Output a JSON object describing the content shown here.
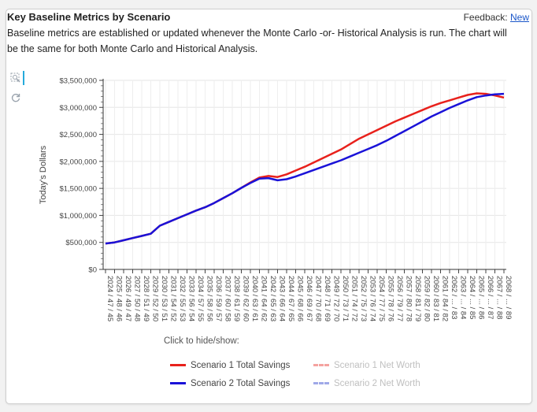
{
  "header": {
    "title": "Key Baseline Metrics by Scenario",
    "feedback_label": "Feedback:",
    "feedback_link": "New",
    "description": "Baseline metrics are established or updated whenever the Monte Carlo -or- Historical Analysis is run. The chart will be the same for both Monte Carlo and Historical Analysis."
  },
  "toolbar": {
    "zoom_icon": "zoom-box-icon",
    "reset_icon": "reset-icon"
  },
  "legend": {
    "title": "Click to hide/show:",
    "items": [
      {
        "label": "Scenario 1 Total Savings",
        "color": "#e8211c",
        "visible": true
      },
      {
        "label": "Scenario 1 Net Worth",
        "color": "#f5a3a0",
        "visible": false
      },
      {
        "label": "Scenario 2 Total Savings",
        "color": "#1a12d8",
        "visible": true
      },
      {
        "label": "Scenario 2 Net Worth",
        "color": "#9fa9e8",
        "visible": false
      }
    ]
  },
  "chart_data": {
    "type": "line",
    "title": "",
    "xlabel": "",
    "ylabel": "Today's Dollars",
    "ylim": [
      0,
      3500000
    ],
    "yticks": [
      "$0",
      "$500,000",
      "$1,000,000",
      "$1,500,000",
      "$2,000,000",
      "$2,500,000",
      "$3,000,000",
      "$3,500,000"
    ],
    "grid": true,
    "legend_position": "bottom",
    "categories": [
      "2024 / 47 / 45",
      "2025 / 48 / 46",
      "2026 / 49 / 47",
      "2027 / 50 / 48",
      "2028 / 51 / 49",
      "2029 / 52 / 50",
      "2030 / 53 / 51",
      "2031 / 54 / 52",
      "2032 / 55 / 53",
      "2033 / 56 / 54",
      "2034 / 57 / 55",
      "2035 / 58 / 56",
      "2036 / 59 / 57",
      "2037 / 60 / 58",
      "2038 / 61 / 59",
      "2039 / 62 / 60",
      "2040 / 63 / 61",
      "2041 / 64 / 62",
      "2042 / 65 / 63",
      "2043 / 66 / 64",
      "2044 / 67 / 65",
      "2045 / 68 / 66",
      "2046 / 69 / 67",
      "2047 / 70 / 68",
      "2048 / 71 / 69",
      "2049 / 72 / 70",
      "2050 / 73 / 71",
      "2051 / 74 / 72",
      "2052 / 75 / 73",
      "2053 / 76 / 74",
      "2054 / 77 / 75",
      "2055 / 78 / 76",
      "2056 / 79 / 77",
      "2057 / 80 / 78",
      "2058 / 81 / 79",
      "2059 / 82 / 80",
      "2060 / 83 / 81",
      "2061 / 84 / 82",
      "2062 / ... / 83",
      "2063 / ... / 84",
      "2064 / ... / 85",
      "2065 / ... / 86",
      "2066 / ... / 87",
      "2067 / ... / 88",
      "2068 / ... / 89"
    ],
    "series": [
      {
        "name": "Scenario 1 Total Savings",
        "color": "#e8211c",
        "values": [
          480000,
          500000,
          540000,
          580000,
          620000,
          660000,
          810000,
          880000,
          950000,
          1020000,
          1090000,
          1150000,
          1230000,
          1320000,
          1410000,
          1510000,
          1610000,
          1700000,
          1730000,
          1710000,
          1760000,
          1830000,
          1900000,
          1980000,
          2060000,
          2140000,
          2220000,
          2320000,
          2420000,
          2500000,
          2580000,
          2660000,
          2740000,
          2810000,
          2880000,
          2950000,
          3020000,
          3080000,
          3130000,
          3180000,
          3230000,
          3260000,
          3250000,
          3220000,
          3180000
        ]
      },
      {
        "name": "Scenario 2 Total Savings",
        "color": "#1a12d8",
        "values": [
          480000,
          500000,
          540000,
          580000,
          620000,
          660000,
          810000,
          880000,
          950000,
          1020000,
          1090000,
          1150000,
          1230000,
          1320000,
          1410000,
          1510000,
          1600000,
          1680000,
          1690000,
          1650000,
          1670000,
          1720000,
          1780000,
          1840000,
          1900000,
          1960000,
          2020000,
          2090000,
          2160000,
          2230000,
          2300000,
          2380000,
          2470000,
          2560000,
          2650000,
          2740000,
          2830000,
          2910000,
          2990000,
          3060000,
          3130000,
          3190000,
          3220000,
          3240000,
          3250000
        ]
      }
    ]
  }
}
